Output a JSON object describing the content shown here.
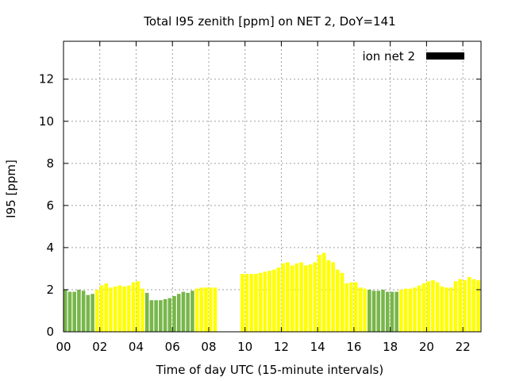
{
  "chart_data": {
    "type": "bar",
    "title": "Total I95 zenith [ppm] on NET 2, DoY=141",
    "xlabel": "Time of day UTC (15-minute intervals)",
    "ylabel": "I95 [ppm]",
    "xlim": [
      0,
      23
    ],
    "ylim": [
      0,
      13.8
    ],
    "x_ticks": [
      "00",
      "02",
      "04",
      "06",
      "08",
      "10",
      "12",
      "14",
      "16",
      "18",
      "20",
      "22"
    ],
    "y_ticks": [
      "0",
      "2",
      "4",
      "6",
      "8",
      "10",
      "12"
    ],
    "grid": true,
    "legend": {
      "position": "top-right",
      "label": "ion net 2",
      "color": "#000000"
    },
    "colors": {
      "green": "#78b64a",
      "yellow": "#ffff00"
    },
    "bars": [
      {
        "x": 0.0,
        "value": 2.0,
        "color": "green"
      },
      {
        "x": 0.25,
        "value": 1.9,
        "color": "green"
      },
      {
        "x": 0.5,
        "value": 1.9,
        "color": "green"
      },
      {
        "x": 0.75,
        "value": 2.0,
        "color": "green"
      },
      {
        "x": 1.0,
        "value": 1.95,
        "color": "green"
      },
      {
        "x": 1.25,
        "value": 1.75,
        "color": "green"
      },
      {
        "x": 1.5,
        "value": 1.8,
        "color": "green"
      },
      {
        "x": 1.75,
        "value": 2.0,
        "color": "yellow"
      },
      {
        "x": 2.0,
        "value": 2.2,
        "color": "yellow"
      },
      {
        "x": 2.25,
        "value": 2.3,
        "color": "yellow"
      },
      {
        "x": 2.5,
        "value": 2.1,
        "color": "yellow"
      },
      {
        "x": 2.75,
        "value": 2.15,
        "color": "yellow"
      },
      {
        "x": 3.0,
        "value": 2.2,
        "color": "yellow"
      },
      {
        "x": 3.25,
        "value": 2.15,
        "color": "yellow"
      },
      {
        "x": 3.5,
        "value": 2.2,
        "color": "yellow"
      },
      {
        "x": 3.75,
        "value": 2.35,
        "color": "yellow"
      },
      {
        "x": 4.0,
        "value": 2.4,
        "color": "yellow"
      },
      {
        "x": 4.25,
        "value": 2.05,
        "color": "yellow"
      },
      {
        "x": 4.5,
        "value": 1.85,
        "color": "green"
      },
      {
        "x": 4.75,
        "value": 1.5,
        "color": "green"
      },
      {
        "x": 5.0,
        "value": 1.5,
        "color": "green"
      },
      {
        "x": 5.25,
        "value": 1.5,
        "color": "green"
      },
      {
        "x": 5.5,
        "value": 1.55,
        "color": "green"
      },
      {
        "x": 5.75,
        "value": 1.6,
        "color": "green"
      },
      {
        "x": 6.0,
        "value": 1.7,
        "color": "green"
      },
      {
        "x": 6.25,
        "value": 1.8,
        "color": "green"
      },
      {
        "x": 6.5,
        "value": 1.9,
        "color": "green"
      },
      {
        "x": 6.75,
        "value": 1.85,
        "color": "green"
      },
      {
        "x": 7.0,
        "value": 1.95,
        "color": "green"
      },
      {
        "x": 7.25,
        "value": 2.05,
        "color": "yellow"
      },
      {
        "x": 7.5,
        "value": 2.1,
        "color": "yellow"
      },
      {
        "x": 7.75,
        "value": 2.1,
        "color": "yellow"
      },
      {
        "x": 8.0,
        "value": 2.1,
        "color": "yellow"
      },
      {
        "x": 8.25,
        "value": 2.1,
        "color": "yellow"
      },
      {
        "x": 9.75,
        "value": 2.75,
        "color": "yellow"
      },
      {
        "x": 10.0,
        "value": 2.75,
        "color": "yellow"
      },
      {
        "x": 10.25,
        "value": 2.75,
        "color": "yellow"
      },
      {
        "x": 10.5,
        "value": 2.75,
        "color": "yellow"
      },
      {
        "x": 10.75,
        "value": 2.8,
        "color": "yellow"
      },
      {
        "x": 11.0,
        "value": 2.85,
        "color": "yellow"
      },
      {
        "x": 11.25,
        "value": 2.9,
        "color": "yellow"
      },
      {
        "x": 11.5,
        "value": 2.95,
        "color": "yellow"
      },
      {
        "x": 11.75,
        "value": 3.05,
        "color": "yellow"
      },
      {
        "x": 12.0,
        "value": 3.25,
        "color": "yellow"
      },
      {
        "x": 12.25,
        "value": 3.3,
        "color": "yellow"
      },
      {
        "x": 12.5,
        "value": 3.15,
        "color": "yellow"
      },
      {
        "x": 12.75,
        "value": 3.25,
        "color": "yellow"
      },
      {
        "x": 13.0,
        "value": 3.3,
        "color": "yellow"
      },
      {
        "x": 13.25,
        "value": 3.15,
        "color": "yellow"
      },
      {
        "x": 13.5,
        "value": 3.2,
        "color": "yellow"
      },
      {
        "x": 13.75,
        "value": 3.3,
        "color": "yellow"
      },
      {
        "x": 14.0,
        "value": 3.65,
        "color": "yellow"
      },
      {
        "x": 14.25,
        "value": 3.75,
        "color": "yellow"
      },
      {
        "x": 14.5,
        "value": 3.4,
        "color": "yellow"
      },
      {
        "x": 14.75,
        "value": 3.3,
        "color": "yellow"
      },
      {
        "x": 15.0,
        "value": 2.95,
        "color": "yellow"
      },
      {
        "x": 15.25,
        "value": 2.8,
        "color": "yellow"
      },
      {
        "x": 15.5,
        "value": 2.3,
        "color": "yellow"
      },
      {
        "x": 15.75,
        "value": 2.35,
        "color": "yellow"
      },
      {
        "x": 16.0,
        "value": 2.35,
        "color": "yellow"
      },
      {
        "x": 16.25,
        "value": 2.1,
        "color": "yellow"
      },
      {
        "x": 16.5,
        "value": 2.05,
        "color": "yellow"
      },
      {
        "x": 16.75,
        "value": 2.0,
        "color": "green"
      },
      {
        "x": 17.0,
        "value": 1.95,
        "color": "green"
      },
      {
        "x": 17.25,
        "value": 1.95,
        "color": "green"
      },
      {
        "x": 17.5,
        "value": 2.0,
        "color": "green"
      },
      {
        "x": 17.75,
        "value": 1.9,
        "color": "green"
      },
      {
        "x": 18.0,
        "value": 1.9,
        "color": "green"
      },
      {
        "x": 18.25,
        "value": 1.9,
        "color": "green"
      },
      {
        "x": 18.5,
        "value": 2.0,
        "color": "yellow"
      },
      {
        "x": 18.75,
        "value": 2.05,
        "color": "yellow"
      },
      {
        "x": 19.0,
        "value": 2.05,
        "color": "yellow"
      },
      {
        "x": 19.25,
        "value": 2.1,
        "color": "yellow"
      },
      {
        "x": 19.5,
        "value": 2.2,
        "color": "yellow"
      },
      {
        "x": 19.75,
        "value": 2.3,
        "color": "yellow"
      },
      {
        "x": 20.0,
        "value": 2.4,
        "color": "yellow"
      },
      {
        "x": 20.25,
        "value": 2.45,
        "color": "yellow"
      },
      {
        "x": 20.5,
        "value": 2.35,
        "color": "yellow"
      },
      {
        "x": 20.75,
        "value": 2.15,
        "color": "yellow"
      },
      {
        "x": 21.0,
        "value": 2.1,
        "color": "yellow"
      },
      {
        "x": 21.25,
        "value": 2.1,
        "color": "yellow"
      },
      {
        "x": 21.5,
        "value": 2.4,
        "color": "yellow"
      },
      {
        "x": 21.75,
        "value": 2.5,
        "color": "yellow"
      },
      {
        "x": 22.0,
        "value": 2.45,
        "color": "yellow"
      },
      {
        "x": 22.25,
        "value": 2.6,
        "color": "yellow"
      },
      {
        "x": 22.5,
        "value": 2.5,
        "color": "yellow"
      },
      {
        "x": 22.75,
        "value": 2.45,
        "color": "yellow"
      }
    ]
  }
}
